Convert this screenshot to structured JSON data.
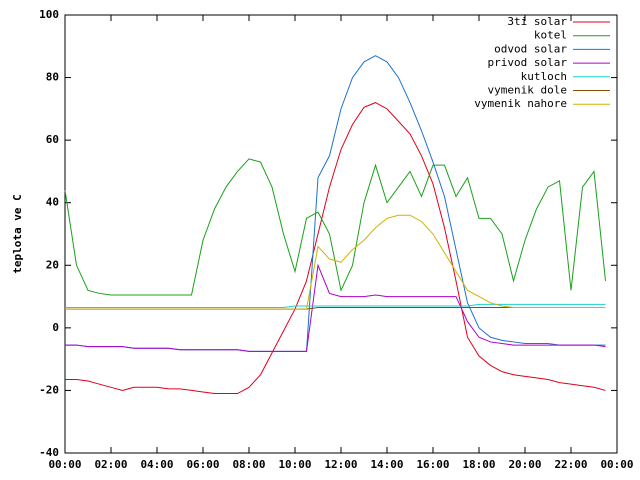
{
  "chart_data": {
    "type": "line",
    "ylabel": "teplota ve C",
    "x": [
      0,
      0.5,
      1,
      1.5,
      2,
      2.5,
      3,
      3.5,
      4,
      4.5,
      5,
      5.5,
      6,
      6.5,
      7,
      7.5,
      8,
      8.5,
      9,
      9.5,
      10,
      10.5,
      11,
      11.5,
      12,
      12.5,
      13,
      13.5,
      14,
      14.5,
      15,
      15.5,
      16,
      16.5,
      17,
      17.5,
      18,
      18.5,
      19,
      19.5,
      20,
      20.5,
      21,
      21.5,
      22,
      22.5,
      23,
      23.5
    ],
    "series": [
      {
        "name": "3ti solar",
        "color": "#e0001c",
        "values": [
          -16.5,
          -16.5,
          -17,
          -18,
          -19,
          -20,
          -19,
          -19,
          -19,
          -19.5,
          -19.5,
          -20,
          -20.5,
          -21,
          -21,
          -21,
          -19,
          -15,
          -8,
          -1,
          6,
          15,
          30,
          45,
          57,
          65,
          70.5,
          72,
          70,
          66,
          62,
          55,
          46,
          32,
          15,
          -3,
          -9,
          -12,
          -14,
          -15,
          -15.5,
          -16,
          -16.5,
          -17.5,
          -18,
          -18.5,
          -19,
          -20
        ]
      },
      {
        "name": "kotel",
        "color": "#1aa01a",
        "values": [
          44,
          20,
          12,
          11,
          10.5,
          10.5,
          10.5,
          10.5,
          10.5,
          10.5,
          10.5,
          10.5,
          28,
          38,
          45,
          50,
          54,
          53,
          45,
          30,
          18,
          35,
          37,
          30,
          12,
          20,
          40,
          52,
          40,
          45,
          50,
          42,
          52,
          52,
          42,
          48,
          35,
          35,
          30,
          15,
          28,
          38,
          45,
          47,
          12,
          45,
          50,
          15
        ]
      },
      {
        "name": "odvod solar",
        "color": "#1a72d0",
        "values": [
          -5.5,
          -5.5,
          -6,
          -6,
          -6,
          -6,
          -6.5,
          -6.5,
          -6.5,
          -6.5,
          -7,
          -7,
          -7,
          -7,
          -7,
          -7,
          -7.5,
          -7.5,
          -7.5,
          -7.5,
          -7.5,
          -7.5,
          48,
          55,
          70,
          80,
          85,
          87,
          85,
          80,
          72,
          63,
          53,
          42,
          25,
          8,
          0,
          -3,
          -4,
          -4.5,
          -5,
          -5,
          -5,
          -5.5,
          -5.5,
          -5.5,
          -5.5,
          -5.5
        ]
      },
      {
        "name": "privod solar",
        "color": "#b000c8",
        "values": [
          -5.5,
          -5.5,
          -6,
          -6,
          -6,
          -6,
          -6.5,
          -6.5,
          -6.5,
          -6.5,
          -7,
          -7,
          -7,
          -7,
          -7,
          -7,
          -7.5,
          -7.5,
          -7.5,
          -7.5,
          -7.5,
          -7.5,
          20,
          11,
          10,
          10,
          10,
          10.5,
          10,
          10,
          10,
          10,
          10,
          10,
          10,
          2,
          -3,
          -4.5,
          -5,
          -5.5,
          -5.5,
          -5.5,
          -5.5,
          -5.5,
          -5.5,
          -5.5,
          -5.5,
          -6
        ]
      },
      {
        "name": "kutloch",
        "color": "#1ad0d0",
        "values": [
          6.5,
          6.5,
          6.5,
          6.5,
          6.5,
          6.5,
          6.5,
          6.5,
          6.5,
          6.5,
          6.5,
          6.5,
          6.5,
          6.5,
          6.5,
          6.5,
          6.5,
          6.5,
          6.5,
          6.5,
          7,
          7,
          7,
          7,
          7,
          7,
          7,
          7,
          7,
          7,
          7,
          7,
          7,
          7,
          7,
          7,
          7.5,
          7.5,
          7.5,
          7.5,
          7.5,
          7.5,
          7.5,
          7.5,
          7.5,
          7.5,
          7.5,
          7.5
        ]
      },
      {
        "name": "vymenik dole",
        "color": "#8a4a00",
        "values": [
          6,
          6,
          6,
          6,
          6,
          6,
          6,
          6,
          6,
          6,
          6,
          6,
          6,
          6,
          6,
          6,
          6,
          6,
          6,
          6,
          6,
          6,
          6.5,
          6.5,
          6.5,
          6.5,
          6.5,
          6.5,
          6.5,
          6.5,
          6.5,
          6.5,
          6.5,
          6.5,
          6.5,
          6.5,
          6.5,
          6.5,
          6.5,
          6.5,
          6.5,
          6.5,
          6.5,
          6.5,
          6.5,
          6.5,
          6.5,
          6.5
        ]
      },
      {
        "name": "vymenik nahore",
        "color": "#d0b400",
        "values": [
          6,
          6,
          6,
          6,
          6,
          6,
          6,
          6,
          6,
          6,
          6,
          6,
          6,
          6,
          6,
          6,
          6,
          6,
          6,
          6,
          6,
          6,
          26,
          22,
          21,
          25,
          28,
          32,
          35,
          36,
          36,
          34,
          30,
          24,
          18,
          12,
          10,
          8,
          7,
          6.5,
          6.5,
          6.5,
          6.5,
          6.5,
          6.5,
          6.5,
          6.5,
          6.5
        ]
      }
    ],
    "xlim": [
      0,
      24
    ],
    "xticks": [
      {
        "value": 0,
        "label": "00:00"
      },
      {
        "value": 2,
        "label": "02:00"
      },
      {
        "value": 4,
        "label": "04:00"
      },
      {
        "value": 6,
        "label": "06:00"
      },
      {
        "value": 8,
        "label": "08:00"
      },
      {
        "value": 10,
        "label": "10:00"
      },
      {
        "value": 12,
        "label": "12:00"
      },
      {
        "value": 14,
        "label": "14:00"
      },
      {
        "value": 16,
        "label": "16:00"
      },
      {
        "value": 18,
        "label": "18:00"
      },
      {
        "value": 20,
        "label": "20:00"
      },
      {
        "value": 22,
        "label": "22:00"
      },
      {
        "value": 24,
        "label": "00:00"
      }
    ],
    "ylim": [
      -40,
      100
    ],
    "yticks": [
      -40,
      -20,
      0,
      20,
      40,
      60,
      80,
      100
    ],
    "grid": false,
    "legend": "top-right"
  }
}
